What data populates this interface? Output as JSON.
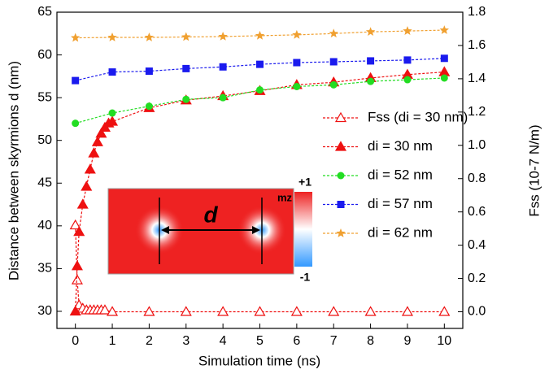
{
  "chart_data": {
    "type": "line",
    "xlabel": "Simulation time (ns)",
    "ylabel": "Distance between skyrmions d (nm)",
    "y2label": "Fss (10-7 N/m)",
    "xlim": [
      -0.5,
      10.5
    ],
    "xticks": [
      0,
      1,
      2,
      3,
      4,
      5,
      6,
      7,
      8,
      9,
      10
    ],
    "ylim": [
      28,
      65
    ],
    "yticks": [
      30,
      35,
      40,
      45,
      50,
      55,
      60,
      65
    ],
    "y2lim": [
      -0.1,
      1.8
    ],
    "y2ticks": [
      {
        "value": 0,
        "label": "0.0"
      },
      0.2,
      0.4,
      0.6,
      0.8,
      {
        "value": 1,
        "label": "1.0"
      },
      1.2,
      1.4,
      1.6,
      1.8
    ],
    "series": [
      {
        "name": "Fss (di = 30 nm)",
        "color": "#ee1111",
        "marker": "open-triangle",
        "axis": "y2",
        "x": [
          0,
          0.05,
          0.1,
          0.2,
          0.3,
          0.4,
          0.5,
          0.6,
          0.7,
          0.8,
          1,
          2,
          3,
          4,
          5,
          6,
          7,
          8,
          9,
          10
        ],
        "values": [
          0.52,
          0.19,
          0.04,
          0.02,
          0.01,
          0.01,
          0.01,
          0.01,
          0.01,
          0.01,
          0,
          0,
          0,
          0,
          0,
          0,
          0,
          0,
          0,
          0
        ]
      },
      {
        "name": "di = 30 nm",
        "color": "#ee1111",
        "marker": "triangle",
        "x": [
          0,
          0.05,
          0.1,
          0.2,
          0.3,
          0.4,
          0.5,
          0.6,
          0.7,
          0.8,
          0.9,
          1,
          2,
          3,
          4,
          5,
          6,
          7,
          8,
          9,
          10
        ],
        "values": [
          30,
          35.3,
          39.3,
          42.5,
          44.6,
          46.6,
          48.5,
          49.8,
          50.8,
          51.5,
          52,
          52.2,
          53.8,
          54.7,
          55.2,
          55.8,
          56.5,
          56.8,
          57.3,
          57.7,
          58
        ]
      },
      {
        "name": "di = 52 nm",
        "color": "#22dd22",
        "marker": "circle",
        "x": [
          0,
          1,
          2,
          3,
          4,
          5,
          6,
          7,
          8,
          9,
          10
        ],
        "values": [
          52,
          53.2,
          54,
          54.8,
          55,
          55.9,
          56.3,
          56.5,
          56.9,
          57.1,
          57.3
        ]
      },
      {
        "name": "di = 57 nm",
        "color": "#1a1aee",
        "marker": "square",
        "x": [
          0,
          1,
          2,
          3,
          4,
          5,
          6,
          7,
          8,
          9,
          10
        ],
        "values": [
          57,
          58,
          58.1,
          58.4,
          58.6,
          58.9,
          59.1,
          59.2,
          59.3,
          59.4,
          59.6
        ]
      },
      {
        "name": "di = 62 nm",
        "color": "#f0a030",
        "marker": "star",
        "x": [
          0,
          1,
          2,
          3,
          4,
          5,
          6,
          7,
          8,
          9,
          10
        ],
        "values": [
          62,
          62.05,
          62.05,
          62.1,
          62.15,
          62.25,
          62.35,
          62.5,
          62.7,
          62.8,
          62.9
        ]
      }
    ],
    "inset_labels": {
      "distance": "d",
      "component": "mz",
      "max": "+1",
      "min": "-1"
    }
  }
}
